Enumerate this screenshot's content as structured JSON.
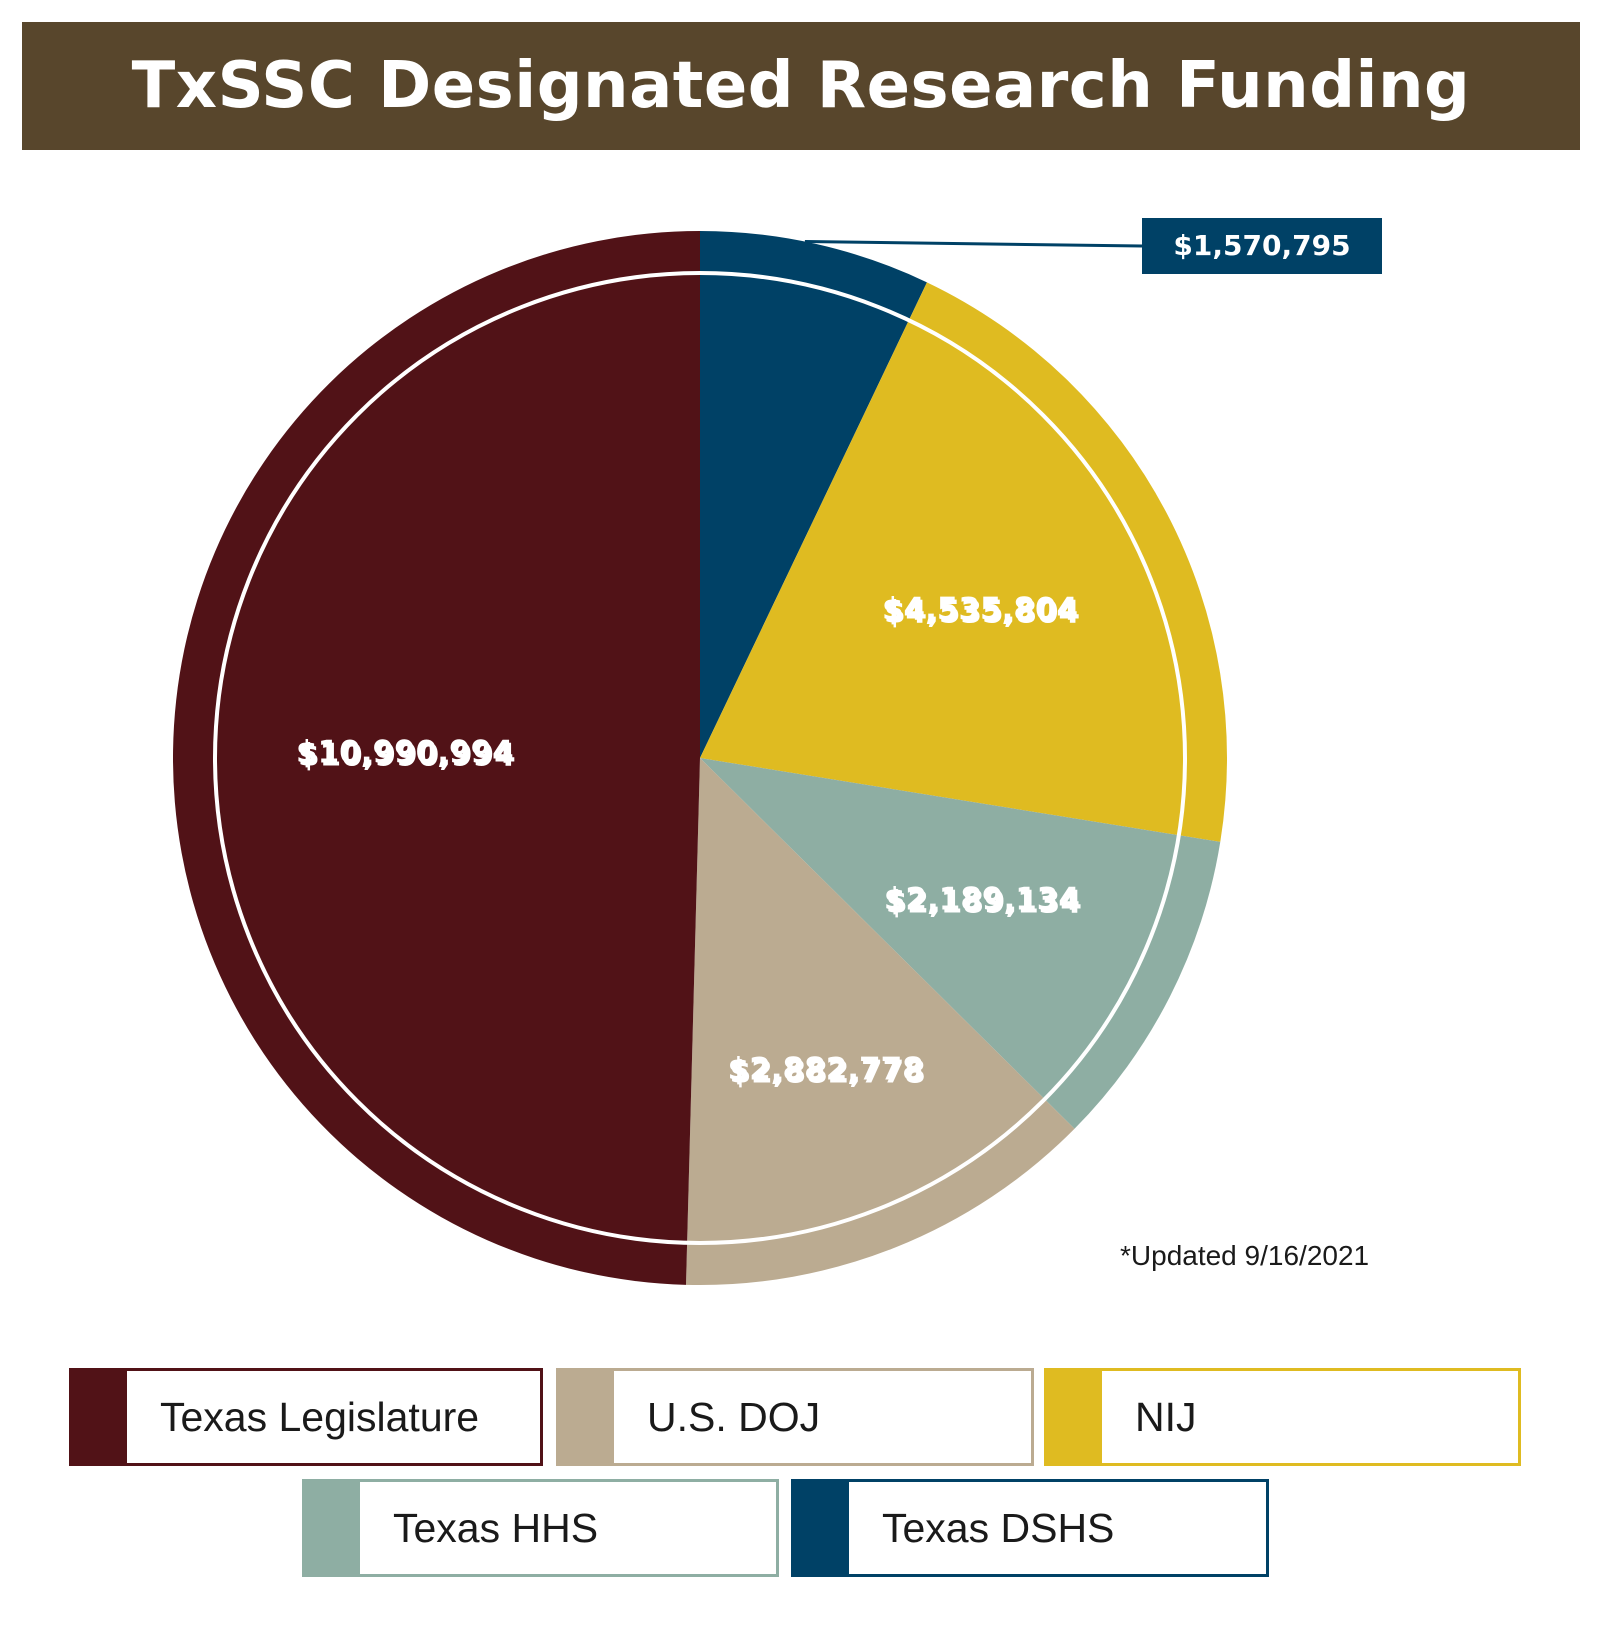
{
  "title": "TxSSC Designated Research Funding",
  "note": "*Updated 9/16/2021",
  "chart_data": {
    "type": "pie",
    "title": "TxSSC Designated Research Funding",
    "start": "12 o'clock, clockwise",
    "slices": [
      {
        "name": "Texas DSHS",
        "value": 1570795,
        "label": "$1,570,795",
        "color": "#004166"
      },
      {
        "name": "NIJ",
        "value": 4535804,
        "label": "$4,535,804",
        "color": "#dfbb21"
      },
      {
        "name": "Texas HHS",
        "value": 2189134,
        "label": "$2,189,134",
        "color": "#8eaea3"
      },
      {
        "name": "U.S. DOJ",
        "value": 2882778,
        "label": "$2,882,778",
        "color": "#bbab91"
      },
      {
        "name": "Texas Legislature",
        "value": 10990994,
        "label": "$10,990,994",
        "color": "#511217"
      }
    ],
    "legend": [
      "Texas Legislature",
      "U.S. DOJ",
      "NIJ",
      "Texas HHS",
      "Texas DSHS"
    ],
    "legend_position": "bottom",
    "inner_ring_color": "#ffffff"
  }
}
